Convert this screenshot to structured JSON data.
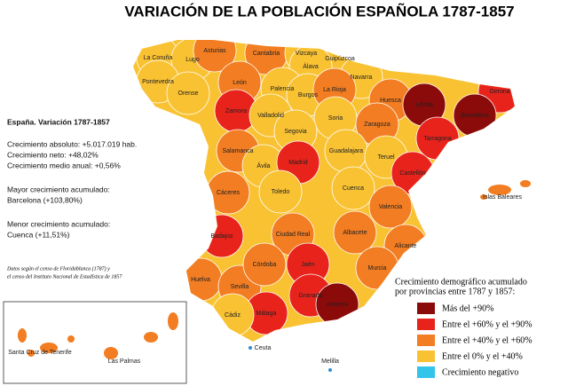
{
  "title": "VARIACIÓN DE LA POBLACIÓN ESPAÑOLA 1787-1857",
  "info": {
    "heading": "España. Variación 1787-1857",
    "lines": [
      "Crecimiento absoluto: +5.017.019 hab.",
      "Crecimiento neto: +48,02%",
      "Crecimiento medio anual: +0,56%",
      "Mayor crecimiento acumulado:",
      "Barcelona (+103,80%)",
      "Menor crecimiento acumulado:",
      "Cuenca (+11,51%)"
    ]
  },
  "source": [
    "Datos según el censo de Floridablanca (1787) y",
    "el censo del Instituto Nacional de Estadística de 1857"
  ],
  "legend": {
    "title": [
      "Crecimiento demográfico acumulado",
      "por provincias entre 1787 y 1857:"
    ],
    "items": [
      {
        "label": "Más del +90%",
        "color": "#8b0a0a"
      },
      {
        "label": "Entre el +60% y el +90%",
        "color": "#e8231c"
      },
      {
        "label": "Entre el +40% y el +60%",
        "color": "#f27d22"
      },
      {
        "label": "Entre el 0% y el +40%",
        "color": "#f9c233"
      },
      {
        "label": "Crecimiento negativo",
        "color": "#33c4ea"
      }
    ]
  },
  "provinces": [
    {
      "label": "La Coruña",
      "color": "#f9c233"
    },
    {
      "label": "Lugo",
      "color": "#f9c233"
    },
    {
      "label": "Pontevedra",
      "color": "#f9c233"
    },
    {
      "label": "Orense",
      "color": "#f9c233"
    },
    {
      "label": "Asturias",
      "color": "#f27d22"
    },
    {
      "label": "Cantabria",
      "color": "#f27d22"
    },
    {
      "label": "Vizcaya",
      "color": "#f9c233"
    },
    {
      "label": "Guipúzcoa",
      "color": "#f9c233"
    },
    {
      "label": "Álava",
      "color": "#f9c233"
    },
    {
      "label": "Navarra",
      "color": "#f9c233"
    },
    {
      "label": "León",
      "color": "#f27d22"
    },
    {
      "label": "Palencia",
      "color": "#f9c233"
    },
    {
      "label": "Burgos",
      "color": "#f9c233"
    },
    {
      "label": "La Rioja",
      "color": "#f27d22"
    },
    {
      "label": "Huesca",
      "color": "#f27d22"
    },
    {
      "label": "Lérida",
      "color": "#8b0a0a"
    },
    {
      "label": "Gerona",
      "color": "#e8231c"
    },
    {
      "label": "Barcelona",
      "color": "#8b0a0a"
    },
    {
      "label": "Tarragona",
      "color": "#e8231c"
    },
    {
      "label": "Zamora",
      "color": "#e8231c"
    },
    {
      "label": "Valladolid",
      "color": "#f9c233"
    },
    {
      "label": "Soria",
      "color": "#f9c233"
    },
    {
      "label": "Zaragoza",
      "color": "#f27d22"
    },
    {
      "label": "Segovia",
      "color": "#f9c233"
    },
    {
      "label": "Salamanca",
      "color": "#f27d22"
    },
    {
      "label": "Ávila",
      "color": "#f9c233"
    },
    {
      "label": "Madrid",
      "color": "#e8231c"
    },
    {
      "label": "Guadalajara",
      "color": "#f9c233"
    },
    {
      "label": "Teruel",
      "color": "#f9c233"
    },
    {
      "label": "Castellón",
      "color": "#e8231c"
    },
    {
      "label": "Cáceres",
      "color": "#f27d22"
    },
    {
      "label": "Toledo",
      "color": "#f9c233"
    },
    {
      "label": "Cuenca",
      "color": "#f9c233"
    },
    {
      "label": "Valencia",
      "color": "#f27d22"
    },
    {
      "label": "Badajoz",
      "color": "#e8231c"
    },
    {
      "label": "Ciudad Real",
      "color": "#f27d22"
    },
    {
      "label": "Albacete",
      "color": "#f27d22"
    },
    {
      "label": "Alicante",
      "color": "#f27d22"
    },
    {
      "label": "Huelva",
      "color": "#f27d22"
    },
    {
      "label": "Sevilla",
      "color": "#f27d22"
    },
    {
      "label": "Córdoba",
      "color": "#f27d22"
    },
    {
      "label": "Jaén",
      "color": "#e8231c"
    },
    {
      "label": "Murcia",
      "color": "#f27d22"
    },
    {
      "label": "Granada",
      "color": "#e8231c"
    },
    {
      "label": "Almería",
      "color": "#8b0a0a"
    },
    {
      "label": "Málaga",
      "color": "#e8231c"
    },
    {
      "label": "Cádiz",
      "color": "#f9c233"
    }
  ],
  "islands": [
    {
      "label": "Islas Baleares",
      "color": "#f27d22"
    },
    {
      "label": "Santa Cruz de Tenerife",
      "color": "#f27d22"
    },
    {
      "label": "Las Palmas",
      "color": "#f27d22"
    }
  ],
  "cities": [
    {
      "label": "Ceuta",
      "color": "#2a8fd0"
    },
    {
      "label": "Melilla",
      "color": "#2a8fd0"
    }
  ]
}
